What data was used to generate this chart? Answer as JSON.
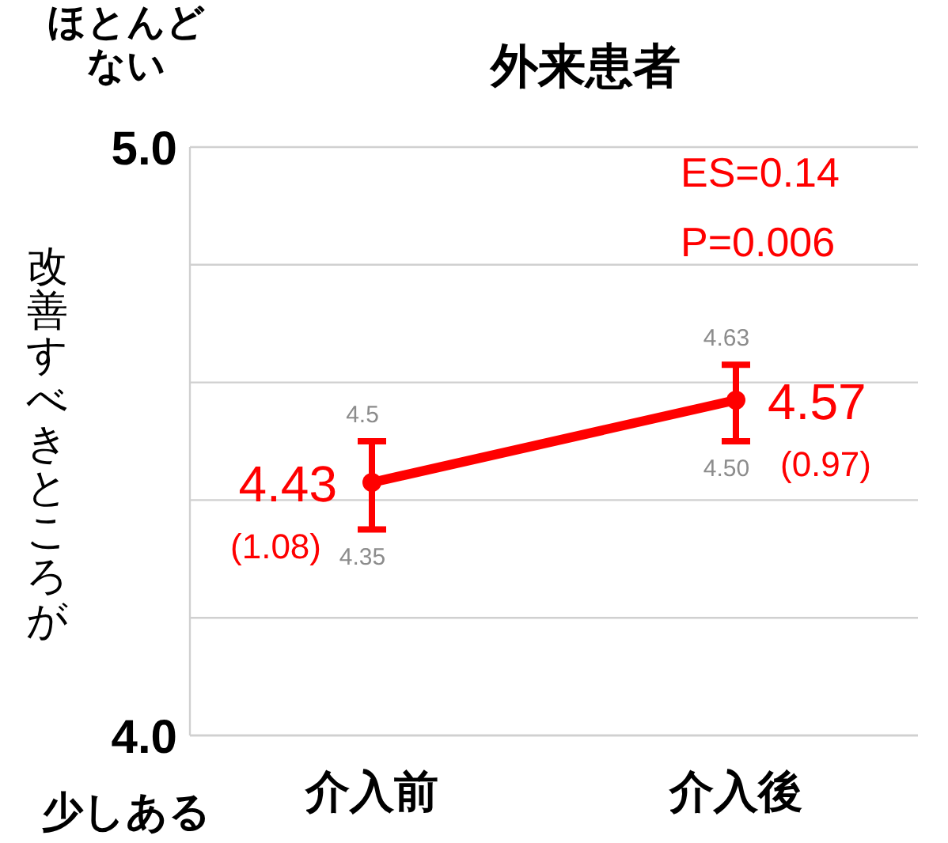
{
  "chart_data": {
    "type": "line",
    "title": "外来患者",
    "ylabel": "改善すべきところが",
    "categories": [
      "介入前",
      "介入後"
    ],
    "series": [
      {
        "color": "#ff0000",
        "values": [
          4.43,
          4.57
        ],
        "errors": [
          [
            4.35,
            4.5
          ],
          [
            4.5,
            4.63
          ]
        ],
        "value_labels": [
          "4.43",
          "4.57"
        ]
      }
    ],
    "ylim": [
      4.0,
      5.0
    ],
    "yticks": [
      {
        "value": 4.0,
        "label": "4.0"
      },
      {
        "value": 4.2,
        "label": null
      },
      {
        "value": 4.4,
        "label": null
      },
      {
        "value": 4.6,
        "label": null
      },
      {
        "value": 4.8,
        "label": null
      },
      {
        "value": 5.0,
        "label": "5.0"
      }
    ],
    "grid": "y",
    "marker": "circle",
    "line_style": "solid",
    "annotations": [
      "ほとんどない",
      "少しある",
      "ES=0.14",
      "P=0.006",
      {
        "text": "(1.08)",
        "x": "介入前",
        "y": 4.43
      },
      {
        "text": "(0.97)",
        "x": "介入後",
        "y": 4.57
      },
      {
        "text": "4.5",
        "x": "介入前",
        "y": 4.5
      },
      {
        "text": "4.35",
        "x": "介入前",
        "y": 4.35
      },
      {
        "text": "4.63",
        "x": "介入後",
        "y": 4.63
      },
      {
        "text": "4.50",
        "x": "介入後",
        "y": 4.5
      }
    ]
  }
}
